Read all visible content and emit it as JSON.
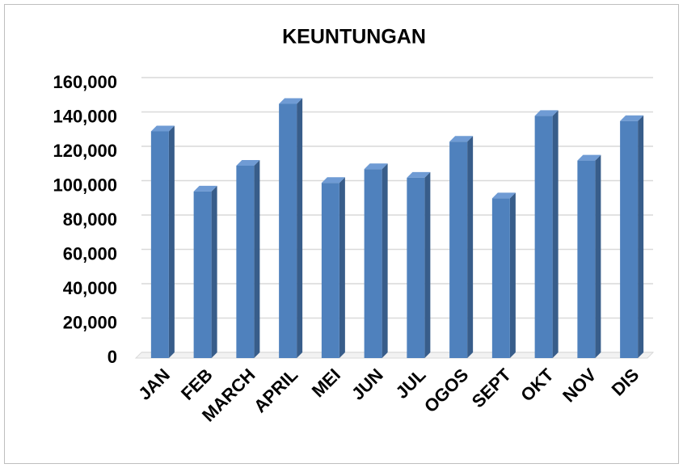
{
  "chart_data": {
    "type": "bar",
    "title": "KEUNTUNGAN",
    "categories": [
      "JAN",
      "FEB",
      "MARCH",
      "APRIL",
      "MEI",
      "JUN",
      "JUL",
      "OGOS",
      "SEPT",
      "OKT",
      "NOV",
      "DIS"
    ],
    "values": [
      132000,
      97000,
      112000,
      148000,
      102000,
      110000,
      105000,
      126000,
      93000,
      141000,
      115000,
      138000
    ],
    "color": "#4f81bd",
    "ylim": [
      0,
      160000
    ],
    "yticks": [
      0,
      {
        "value": 20000,
        "label": "20,000"
      },
      {
        "value": 40000,
        "label": "40,000"
      },
      {
        "value": 60000,
        "label": "60,000"
      },
      {
        "value": 80000,
        "label": "80,000"
      },
      {
        "value": 100000,
        "label": "100,000"
      },
      {
        "value": 120000,
        "label": "120,000"
      },
      {
        "value": 140000,
        "label": "140,000"
      },
      {
        "value": 160000,
        "label": "160,000"
      }
    ],
    "grid": true
  }
}
